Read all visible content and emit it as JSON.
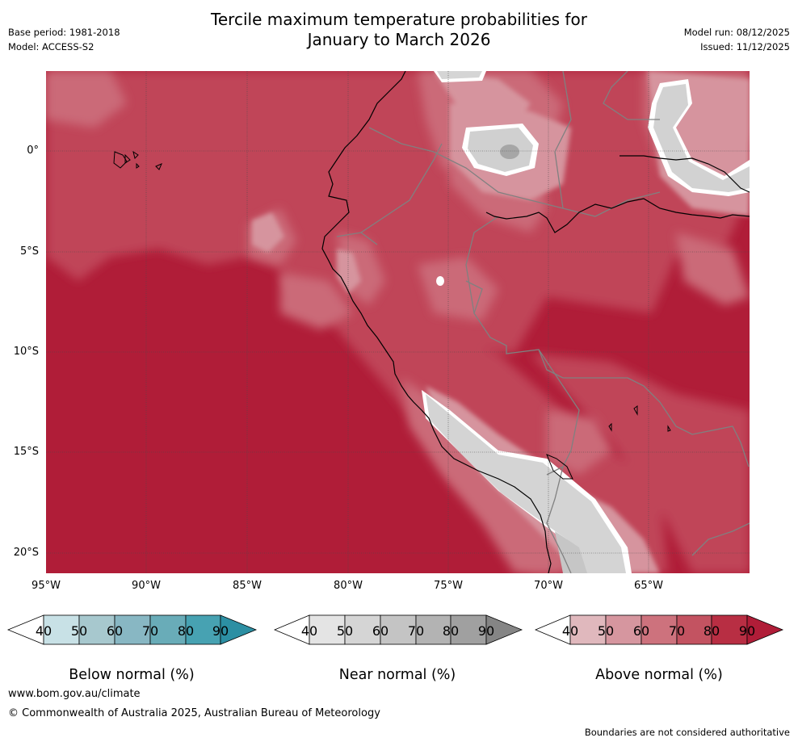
{
  "title_line1": "Tercile maximum temperature probabilities for",
  "title_line2": "January to March 2026",
  "base_period": "Base period: 1981-2018",
  "model": "Model: ACCESS-S2",
  "model_run": "Model run: 08/12/2025",
  "issued": "Issued: 11/12/2025",
  "lat_labels": [
    "0°",
    "5°S",
    "10°S",
    "15°S",
    "20°S"
  ],
  "lon_labels": [
    "95°W",
    "90°W",
    "85°W",
    "80°W",
    "75°W",
    "70°W",
    "65°W"
  ],
  "colorbars": [
    {
      "label": "Below normal (%)",
      "ticks": [
        "40",
        "50",
        "60",
        "70",
        "80",
        "90"
      ],
      "colors": [
        "#ffffff",
        "#c8e1e6",
        "#a7c8ce",
        "#88b7c3",
        "#69acb8",
        "#47a2b2",
        "#2c8fa3"
      ]
    },
    {
      "label": "Near normal (%)",
      "ticks": [
        "40",
        "50",
        "60",
        "70",
        "80",
        "90"
      ],
      "colors": [
        "#ffffff",
        "#e4e4e4",
        "#d5d5d5",
        "#c4c4c4",
        "#b3b3b3",
        "#a0a0a0",
        "#858585"
      ]
    },
    {
      "label": "Above normal (%)",
      "ticks": [
        "40",
        "50",
        "60",
        "70",
        "80",
        "90"
      ],
      "colors": [
        "#ffffff",
        "#e0b8bd",
        "#d6969f",
        "#cd727d",
        "#c35361",
        "#b82e43",
        "#b01d38"
      ]
    }
  ],
  "footer_url": "www.bom.gov.au/climate",
  "footer_copyright": "© Commonwealth of Australia 2025, Australian Bureau of Meteorology",
  "footer_disclaimer": "Boundaries are not considered authoritative"
}
